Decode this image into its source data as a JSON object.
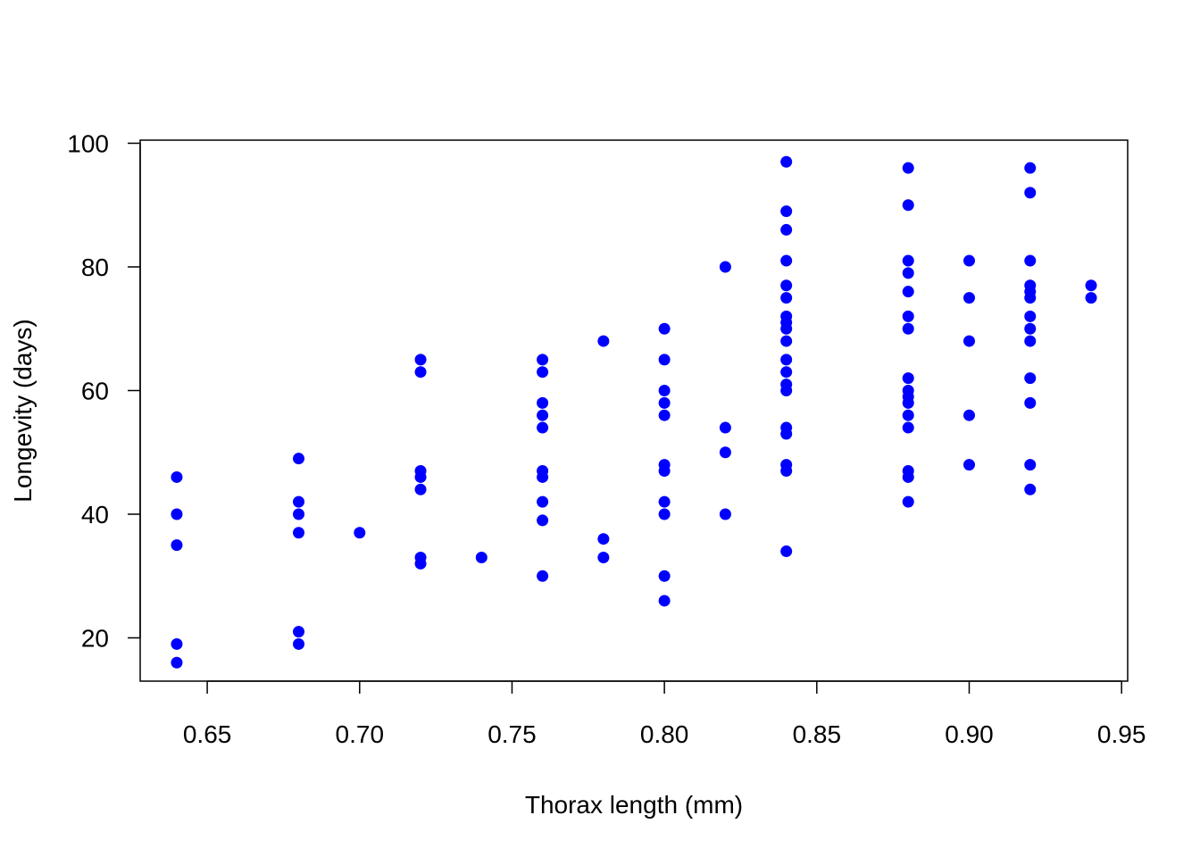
{
  "chart_data": {
    "type": "scatter",
    "title": "",
    "xlabel": "Thorax length (mm)",
    "ylabel": "Longevity (days)",
    "xlim": [
      0.628,
      0.952
    ],
    "ylim": [
      13,
      100.5
    ],
    "x_ticks": [
      0.65,
      0.7,
      0.75,
      0.8,
      0.85,
      0.9,
      0.95
    ],
    "x_tick_labels": [
      "0.65",
      "0.70",
      "0.75",
      "0.80",
      "0.85",
      "0.90",
      "0.95"
    ],
    "y_ticks": [
      20,
      40,
      60,
      80,
      100
    ],
    "y_tick_labels": [
      "20",
      "40",
      "60",
      "80",
      "100"
    ],
    "grid": false,
    "point_color": "#0000ff",
    "points": [
      [
        0.64,
        46
      ],
      [
        0.64,
        40
      ],
      [
        0.64,
        35
      ],
      [
        0.64,
        19
      ],
      [
        0.64,
        16
      ],
      [
        0.68,
        49
      ],
      [
        0.68,
        42
      ],
      [
        0.68,
        40
      ],
      [
        0.68,
        37
      ],
      [
        0.68,
        21
      ],
      [
        0.68,
        19
      ],
      [
        0.7,
        37
      ],
      [
        0.72,
        65
      ],
      [
        0.72,
        63
      ],
      [
        0.72,
        47
      ],
      [
        0.72,
        46
      ],
      [
        0.72,
        44
      ],
      [
        0.72,
        33
      ],
      [
        0.72,
        32
      ],
      [
        0.74,
        33
      ],
      [
        0.76,
        65
      ],
      [
        0.76,
        63
      ],
      [
        0.76,
        58
      ],
      [
        0.76,
        56
      ],
      [
        0.76,
        54
      ],
      [
        0.76,
        47
      ],
      [
        0.76,
        46
      ],
      [
        0.76,
        42
      ],
      [
        0.76,
        39
      ],
      [
        0.76,
        30
      ],
      [
        0.78,
        68
      ],
      [
        0.78,
        36
      ],
      [
        0.78,
        33
      ],
      [
        0.8,
        70
      ],
      [
        0.8,
        65
      ],
      [
        0.8,
        60
      ],
      [
        0.8,
        58
      ],
      [
        0.8,
        56
      ],
      [
        0.8,
        48
      ],
      [
        0.8,
        47
      ],
      [
        0.8,
        42
      ],
      [
        0.8,
        40
      ],
      [
        0.8,
        30
      ],
      [
        0.8,
        26
      ],
      [
        0.82,
        80
      ],
      [
        0.82,
        54
      ],
      [
        0.82,
        50
      ],
      [
        0.82,
        40
      ],
      [
        0.84,
        97
      ],
      [
        0.84,
        89
      ],
      [
        0.84,
        86
      ],
      [
        0.84,
        81
      ],
      [
        0.84,
        77
      ],
      [
        0.84,
        75
      ],
      [
        0.84,
        72
      ],
      [
        0.84,
        71
      ],
      [
        0.84,
        70
      ],
      [
        0.84,
        68
      ],
      [
        0.84,
        65
      ],
      [
        0.84,
        63
      ],
      [
        0.84,
        61
      ],
      [
        0.84,
        60
      ],
      [
        0.84,
        54
      ],
      [
        0.84,
        53
      ],
      [
        0.84,
        48
      ],
      [
        0.84,
        47
      ],
      [
        0.84,
        34
      ],
      [
        0.88,
        96
      ],
      [
        0.88,
        90
      ],
      [
        0.88,
        81
      ],
      [
        0.88,
        79
      ],
      [
        0.88,
        76
      ],
      [
        0.88,
        72
      ],
      [
        0.88,
        70
      ],
      [
        0.88,
        62
      ],
      [
        0.88,
        60
      ],
      [
        0.88,
        59
      ],
      [
        0.88,
        58
      ],
      [
        0.88,
        56
      ],
      [
        0.88,
        54
      ],
      [
        0.88,
        47
      ],
      [
        0.88,
        46
      ],
      [
        0.88,
        42
      ],
      [
        0.9,
        81
      ],
      [
        0.9,
        75
      ],
      [
        0.9,
        68
      ],
      [
        0.9,
        56
      ],
      [
        0.9,
        48
      ],
      [
        0.92,
        96
      ],
      [
        0.92,
        92
      ],
      [
        0.92,
        81
      ],
      [
        0.92,
        77
      ],
      [
        0.92,
        76
      ],
      [
        0.92,
        75
      ],
      [
        0.92,
        72
      ],
      [
        0.92,
        70
      ],
      [
        0.92,
        68
      ],
      [
        0.92,
        62
      ],
      [
        0.92,
        58
      ],
      [
        0.92,
        48
      ],
      [
        0.92,
        44
      ],
      [
        0.94,
        77
      ],
      [
        0.94,
        75
      ]
    ]
  }
}
